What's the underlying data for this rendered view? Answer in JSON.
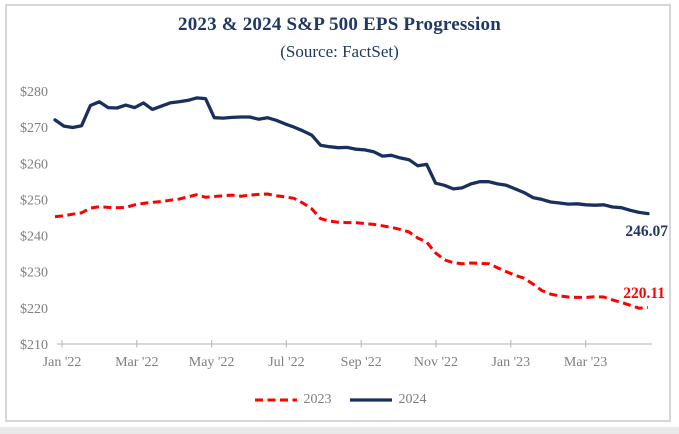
{
  "colors": {
    "title": "#1f3864",
    "navy_line": "#1b2f5e",
    "red_line": "#ff0000",
    "axis_text": "#7f7f7f",
    "axis_line": "#bfbfbf",
    "frame_border": "#d7d7d7"
  },
  "chart_data": {
    "type": "line",
    "title": "2023 & 2024 S&P 500 EPS Progression",
    "subtitle": "(Source: FactSet)",
    "xlabel": "",
    "ylabel": "",
    "grid": false,
    "legend_position": "bottom",
    "x_tick_labels": [
      "Jan '22",
      "Mar '22",
      "May '22",
      "Jul '22",
      "Sep '22",
      "Nov '22",
      "Jan '23",
      "Mar '23"
    ],
    "y_axis": {
      "min": 210,
      "max": 280,
      "step": 10,
      "tick_labels": [
        "$280",
        "$270",
        "$260",
        "$250",
        "$240",
        "$230",
        "$220",
        "$210"
      ]
    },
    "series": [
      {
        "name": "2023",
        "style": "dashed",
        "color": "#ff0000",
        "end_label": "220.11",
        "final_value": 220.11,
        "values": [
          245.2,
          245.5,
          245.9,
          246.3,
          247.6,
          248.0,
          247.8,
          247.7,
          247.8,
          248.5,
          248.9,
          249.2,
          249.4,
          249.8,
          250.1,
          250.7,
          251.3,
          250.6,
          250.8,
          251.0,
          251.2,
          250.9,
          251.2,
          251.4,
          251.5,
          251.0,
          250.7,
          250.3,
          249.0,
          247.4,
          244.7,
          244.0,
          243.7,
          243.6,
          243.6,
          243.3,
          243.1,
          242.7,
          242.3,
          241.7,
          241.0,
          239.3,
          238.2,
          235.2,
          233.3,
          232.5,
          232.2,
          232.4,
          232.3,
          232.2,
          231.1,
          230.0,
          229.0,
          228.2,
          226.6,
          224.8,
          223.8,
          223.3,
          223.0,
          222.9,
          222.9,
          223.1,
          223.0,
          222.2,
          221.5,
          220.7,
          219.9,
          220.11
        ]
      },
      {
        "name": "2024",
        "style": "solid",
        "color": "#1b2f5e",
        "end_label": "246.07",
        "final_value": 246.07,
        "values": [
          272.0,
          270.3,
          269.9,
          270.4,
          276.0,
          277.0,
          275.4,
          275.3,
          276.1,
          275.4,
          276.7,
          274.9,
          275.8,
          276.7,
          277.0,
          277.4,
          278.1,
          277.9,
          272.6,
          272.5,
          272.7,
          272.8,
          272.8,
          272.2,
          272.6,
          271.9,
          270.9,
          270.0,
          269.0,
          267.8,
          265.0,
          264.6,
          264.3,
          264.4,
          263.9,
          263.7,
          263.2,
          262.0,
          262.2,
          261.5,
          261.0,
          259.3,
          259.7,
          254.5,
          253.9,
          252.9,
          253.2,
          254.3,
          254.9,
          254.9,
          254.3,
          253.9,
          252.9,
          251.9,
          250.5,
          250.0,
          249.3,
          249.0,
          248.7,
          248.8,
          248.5,
          248.4,
          248.5,
          247.9,
          247.7,
          247.0,
          246.4,
          246.07
        ]
      }
    ]
  }
}
